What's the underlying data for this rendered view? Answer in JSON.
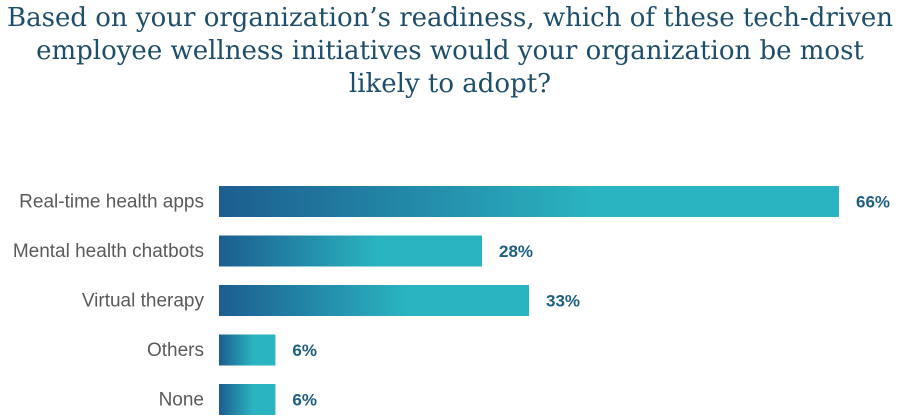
{
  "chart_data": {
    "type": "bar",
    "orientation": "horizontal",
    "title_lines": [
      "Based on your organization’s readiness, which of these tech-driven",
      "employee wellness initiatives would your organization be most",
      "likely to adopt?"
    ],
    "categories": [
      "Real-time health apps",
      "Mental health chatbots",
      "Virtual therapy",
      "Others",
      "None"
    ],
    "values": [
      66,
      28,
      33,
      6,
      6
    ],
    "value_labels": [
      "66%",
      "28%",
      "33%",
      "6%",
      "6%"
    ],
    "xlim": [
      0,
      66
    ],
    "grid": false,
    "colors": {
      "gradient_start": "#1c5d8f",
      "gradient_end": "#2ab3c0"
    }
  }
}
